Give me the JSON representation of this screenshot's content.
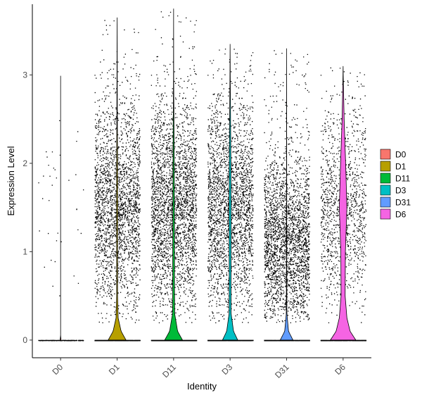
{
  "chart_data": {
    "type": "violin",
    "xlabel": "Identity",
    "ylabel": "Expression Level",
    "ylim": [
      -0.2,
      3.8
    ],
    "yticks": [
      0,
      1,
      2,
      3
    ],
    "categories": [
      "D0",
      "D1",
      "D11",
      "D3",
      "D31",
      "D6"
    ],
    "colors": [
      "#F8766D",
      "#B79F00",
      "#00BA38",
      "#00BFC4",
      "#619CFF",
      "#F564E3"
    ],
    "series": [
      {
        "name": "D0",
        "max": 2.99,
        "base_density": 0.02,
        "points": 300,
        "expressed_fraction": 0.12,
        "profile": [
          [
            0,
            1.0
          ],
          [
            0.05,
            0.03
          ],
          [
            1.0,
            0.02
          ],
          [
            2.5,
            0.01
          ],
          [
            3.0,
            0
          ]
        ]
      },
      {
        "name": "D1",
        "max": 3.65,
        "base_density": 0.35,
        "points": 4200,
        "expressed_fraction": 0.55,
        "profile": [
          [
            0,
            1.0
          ],
          [
            0.1,
            0.45
          ],
          [
            0.25,
            0.12
          ],
          [
            0.5,
            0.05
          ],
          [
            1.0,
            0.05
          ],
          [
            1.5,
            0.06
          ],
          [
            2.0,
            0.05
          ],
          [
            2.5,
            0.03
          ],
          [
            3.0,
            0.015
          ],
          [
            3.65,
            0
          ]
        ]
      },
      {
        "name": "D11",
        "max": 3.75,
        "base_density": 0.35,
        "points": 5000,
        "expressed_fraction": 0.55,
        "profile": [
          [
            0,
            1.0
          ],
          [
            0.1,
            0.45
          ],
          [
            0.3,
            0.12
          ],
          [
            0.6,
            0.1
          ],
          [
            1.0,
            0.1
          ],
          [
            1.5,
            0.09
          ],
          [
            2.0,
            0.07
          ],
          [
            2.5,
            0.04
          ],
          [
            3.0,
            0.01
          ],
          [
            3.75,
            0
          ]
        ]
      },
      {
        "name": "D3",
        "max": 3.35,
        "base_density": 0.3,
        "points": 4500,
        "expressed_fraction": 0.55,
        "profile": [
          [
            0,
            1.0
          ],
          [
            0.1,
            0.45
          ],
          [
            0.3,
            0.13
          ],
          [
            0.7,
            0.12
          ],
          [
            1.0,
            0.13
          ],
          [
            1.5,
            0.14
          ],
          [
            2.0,
            0.11
          ],
          [
            2.5,
            0.06
          ],
          [
            3.0,
            0.02
          ],
          [
            3.35,
            0
          ]
        ]
      },
      {
        "name": "D31",
        "max": 3.3,
        "base_density": 0.25,
        "points": 4800,
        "expressed_fraction": 0.55,
        "profile": [
          [
            0,
            1.0
          ],
          [
            0.1,
            0.3
          ],
          [
            0.3,
            0.05
          ],
          [
            0.8,
            0.03
          ],
          [
            1.5,
            0.02
          ],
          [
            2.5,
            0.01
          ],
          [
            3.3,
            0
          ]
        ]
      },
      {
        "name": "D6",
        "max": 3.1,
        "base_density": 0.5,
        "points": 2200,
        "expressed_fraction": 0.55,
        "profile": [
          [
            0,
            1.0
          ],
          [
            0.1,
            0.55
          ],
          [
            0.25,
            0.3
          ],
          [
            0.5,
            0.16
          ],
          [
            1.0,
            0.18
          ],
          [
            1.5,
            0.3
          ],
          [
            2.0,
            0.2
          ],
          [
            2.5,
            0.08
          ],
          [
            3.0,
            0.01
          ],
          [
            3.1,
            0
          ]
        ]
      }
    ],
    "legend": {
      "placement": "right",
      "entries": [
        "D0",
        "D1",
        "D11",
        "D3",
        "D31",
        "D6"
      ]
    },
    "grid": false
  }
}
